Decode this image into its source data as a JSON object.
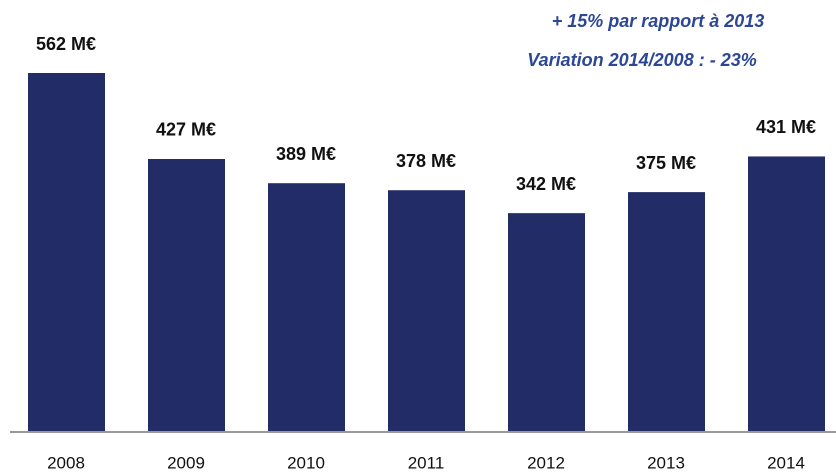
{
  "chart_data": {
    "type": "bar",
    "annotations": [
      "+ 15% par rapport à 2013",
      "Variation 2014/2008 :  - 23%"
    ],
    "categories": [
      "2008",
      "2009",
      "2010",
      "2011",
      "2012",
      "2013",
      "2014"
    ],
    "values": [
      562,
      427,
      389,
      378,
      342,
      375,
      431
    ],
    "value_labels": [
      "562 M€",
      "427 M€",
      "389 M€",
      "378 M€",
      "342 M€",
      "375 M€",
      "431 M€"
    ],
    "color": "#222c66"
  }
}
